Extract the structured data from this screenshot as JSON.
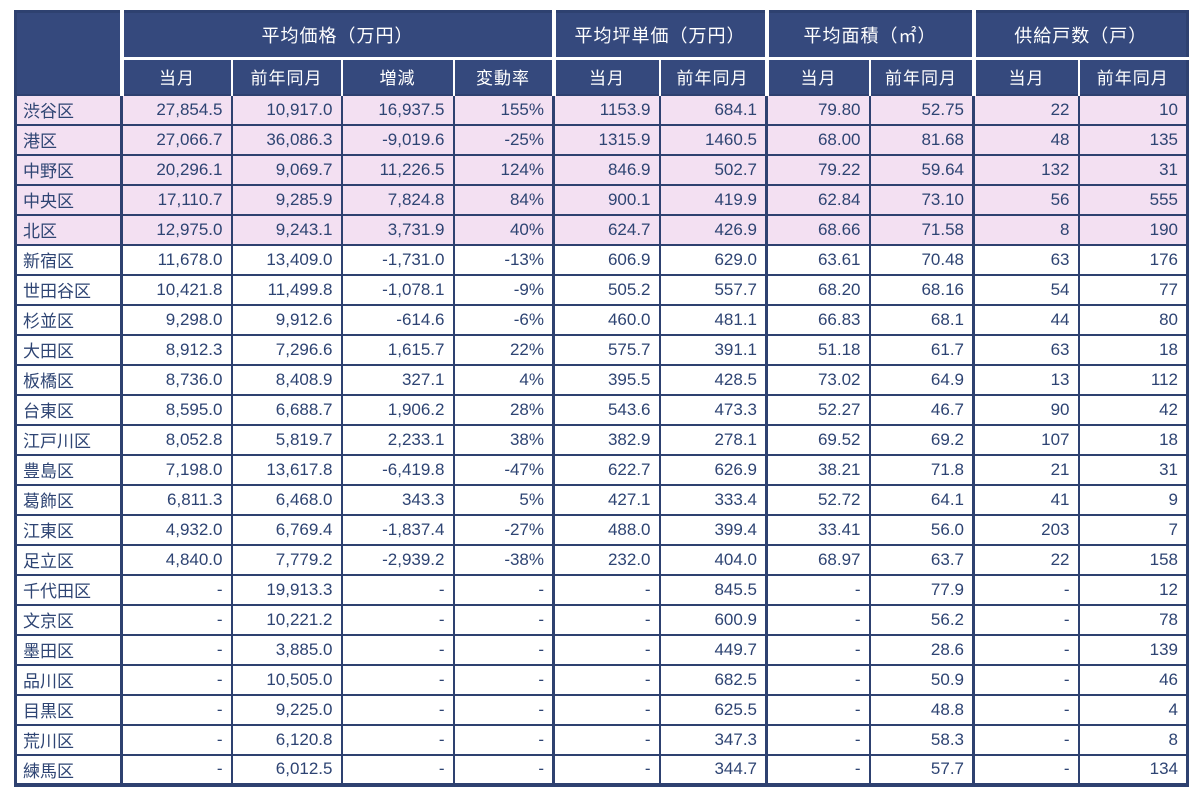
{
  "colors": {
    "header_bg": "#35497D",
    "header_text": "#FFFFFF",
    "border": "#2E4170",
    "text": "#2E4473",
    "highlight_row_bg": "#F3E0F2",
    "row_bg": "#FFFFFF"
  },
  "chart_data": {
    "type": "table",
    "title": "",
    "row_header_label": "",
    "column_groups": [
      {
        "label": "平均価格（万円）",
        "span": 4
      },
      {
        "label": "平均坪単価（万円）",
        "span": 2
      },
      {
        "label": "平均面積（㎡）",
        "span": 2
      },
      {
        "label": "供給戸数（戸）",
        "span": 2
      }
    ],
    "subheaders": [
      "当月",
      "前年同月",
      "増減",
      "変動率",
      "当月",
      "前年同月",
      "当月",
      "前年同月",
      "当月",
      "前年同月"
    ],
    "rows": [
      {
        "ward": "渋谷区",
        "highlight": true,
        "values": [
          "27,854.5",
          "10,917.0",
          "16,937.5",
          "155%",
          "1153.9",
          "684.1",
          "79.80",
          "52.75",
          "22",
          "10"
        ]
      },
      {
        "ward": "港区",
        "highlight": true,
        "values": [
          "27,066.7",
          "36,086.3",
          "-9,019.6",
          "-25%",
          "1315.9",
          "1460.5",
          "68.00",
          "81.68",
          "48",
          "135"
        ]
      },
      {
        "ward": "中野区",
        "highlight": true,
        "values": [
          "20,296.1",
          "9,069.7",
          "11,226.5",
          "124%",
          "846.9",
          "502.7",
          "79.22",
          "59.64",
          "132",
          "31"
        ]
      },
      {
        "ward": "中央区",
        "highlight": true,
        "values": [
          "17,110.7",
          "9,285.9",
          "7,824.8",
          "84%",
          "900.1",
          "419.9",
          "62.84",
          "73.10",
          "56",
          "555"
        ]
      },
      {
        "ward": "北区",
        "highlight": true,
        "values": [
          "12,975.0",
          "9,243.1",
          "3,731.9",
          "40%",
          "624.7",
          "426.9",
          "68.66",
          "71.58",
          "8",
          "190"
        ]
      },
      {
        "ward": "新宿区",
        "highlight": false,
        "values": [
          "11,678.0",
          "13,409.0",
          "-1,731.0",
          "-13%",
          "606.9",
          "629.0",
          "63.61",
          "70.48",
          "63",
          "176"
        ]
      },
      {
        "ward": "世田谷区",
        "highlight": false,
        "values": [
          "10,421.8",
          "11,499.8",
          "-1,078.1",
          "-9%",
          "505.2",
          "557.7",
          "68.20",
          "68.16",
          "54",
          "77"
        ]
      },
      {
        "ward": "杉並区",
        "highlight": false,
        "values": [
          "9,298.0",
          "9,912.6",
          "-614.6",
          "-6%",
          "460.0",
          "481.1",
          "66.83",
          "68.1",
          "44",
          "80"
        ]
      },
      {
        "ward": "大田区",
        "highlight": false,
        "values": [
          "8,912.3",
          "7,296.6",
          "1,615.7",
          "22%",
          "575.7",
          "391.1",
          "51.18",
          "61.7",
          "63",
          "18"
        ]
      },
      {
        "ward": "板橋区",
        "highlight": false,
        "values": [
          "8,736.0",
          "8,408.9",
          "327.1",
          "4%",
          "395.5",
          "428.5",
          "73.02",
          "64.9",
          "13",
          "112"
        ]
      },
      {
        "ward": "台東区",
        "highlight": false,
        "values": [
          "8,595.0",
          "6,688.7",
          "1,906.2",
          "28%",
          "543.6",
          "473.3",
          "52.27",
          "46.7",
          "90",
          "42"
        ]
      },
      {
        "ward": "江戸川区",
        "highlight": false,
        "values": [
          "8,052.8",
          "5,819.7",
          "2,233.1",
          "38%",
          "382.9",
          "278.1",
          "69.52",
          "69.2",
          "107",
          "18"
        ]
      },
      {
        "ward": "豊島区",
        "highlight": false,
        "values": [
          "7,198.0",
          "13,617.8",
          "-6,419.8",
          "-47%",
          "622.7",
          "626.9",
          "38.21",
          "71.8",
          "21",
          "31"
        ]
      },
      {
        "ward": "葛飾区",
        "highlight": false,
        "values": [
          "6,811.3",
          "6,468.0",
          "343.3",
          "5%",
          "427.1",
          "333.4",
          "52.72",
          "64.1",
          "41",
          "9"
        ]
      },
      {
        "ward": "江東区",
        "highlight": false,
        "values": [
          "4,932.0",
          "6,769.4",
          "-1,837.4",
          "-27%",
          "488.0",
          "399.4",
          "33.41",
          "56.0",
          "203",
          "7"
        ]
      },
      {
        "ward": "足立区",
        "highlight": false,
        "values": [
          "4,840.0",
          "7,779.2",
          "-2,939.2",
          "-38%",
          "232.0",
          "404.0",
          "68.97",
          "63.7",
          "22",
          "158"
        ]
      },
      {
        "ward": "千代田区",
        "highlight": false,
        "values": [
          "-",
          "19,913.3",
          "-",
          "-",
          "-",
          "845.5",
          "-",
          "77.9",
          "-",
          "12"
        ]
      },
      {
        "ward": "文京区",
        "highlight": false,
        "values": [
          "-",
          "10,221.2",
          "-",
          "-",
          "-",
          "600.9",
          "-",
          "56.2",
          "-",
          "78"
        ]
      },
      {
        "ward": "墨田区",
        "highlight": false,
        "values": [
          "-",
          "3,885.0",
          "-",
          "-",
          "-",
          "449.7",
          "-",
          "28.6",
          "-",
          "139"
        ]
      },
      {
        "ward": "品川区",
        "highlight": false,
        "values": [
          "-",
          "10,505.0",
          "-",
          "-",
          "-",
          "682.5",
          "-",
          "50.9",
          "-",
          "46"
        ]
      },
      {
        "ward": "目黒区",
        "highlight": false,
        "values": [
          "-",
          "9,225.0",
          "-",
          "-",
          "-",
          "625.5",
          "-",
          "48.8",
          "-",
          "4"
        ]
      },
      {
        "ward": "荒川区",
        "highlight": false,
        "values": [
          "-",
          "6,120.8",
          "-",
          "-",
          "-",
          "347.3",
          "-",
          "58.3",
          "-",
          "8"
        ]
      },
      {
        "ward": "練馬区",
        "highlight": false,
        "values": [
          "-",
          "6,012.5",
          "-",
          "-",
          "-",
          "344.7",
          "-",
          "57.7",
          "-",
          "134"
        ]
      }
    ]
  }
}
